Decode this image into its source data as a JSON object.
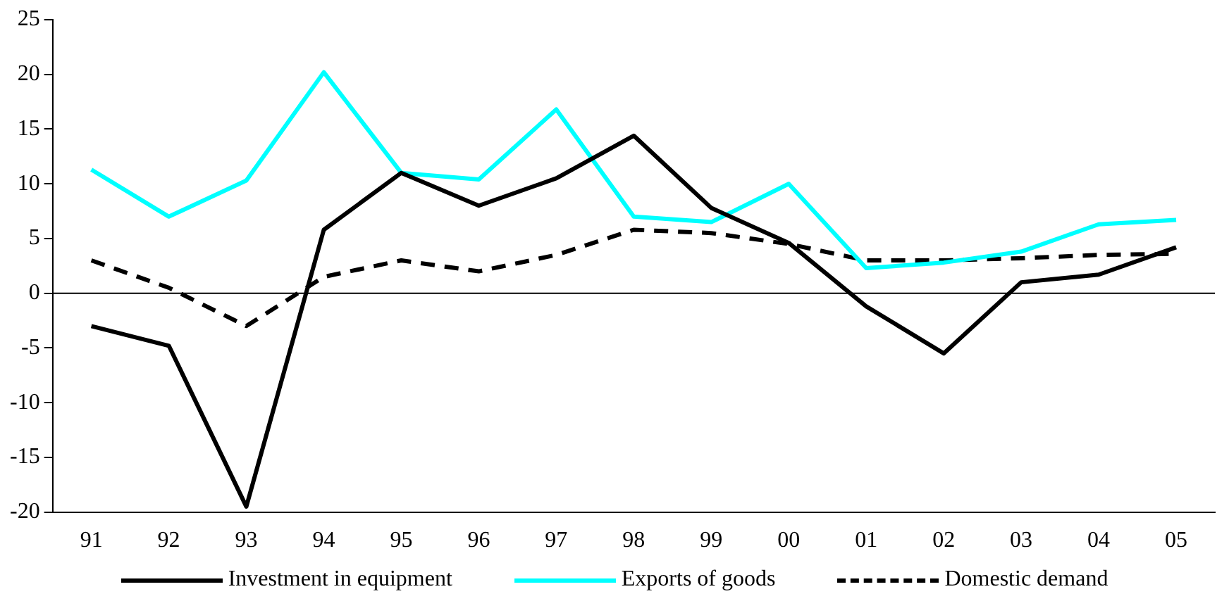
{
  "chart_data": {
    "type": "line",
    "categories": [
      "91",
      "92",
      "93",
      "94",
      "95",
      "96",
      "97",
      "98",
      "99",
      "00",
      "01",
      "02",
      "03",
      "04",
      "05"
    ],
    "series": [
      {
        "name": "Investment in equipment",
        "color": "#000000",
        "line_style": "solid",
        "values": [
          -3,
          -4.8,
          -19.5,
          5.8,
          11,
          8,
          10.5,
          14.4,
          7.8,
          4.6,
          -1.2,
          -5.5,
          1,
          1.7,
          4.2
        ]
      },
      {
        "name": "Exports of goods",
        "color": "#00ffff",
        "line_style": "solid",
        "values": [
          11.3,
          7,
          10.3,
          20.2,
          11,
          10.4,
          16.8,
          7,
          6.5,
          10,
          2.3,
          2.8,
          3.8,
          6.3,
          6.7
        ]
      },
      {
        "name": "Domestic demand",
        "color": "#000000",
        "line_style": "dashed",
        "values": [
          3,
          0.5,
          -3,
          1.5,
          3,
          2,
          3.5,
          5.8,
          5.5,
          4.5,
          3,
          3,
          3.2,
          3.5,
          3.6
        ]
      }
    ],
    "ylim": [
      -20,
      25
    ],
    "yticks": [
      -20,
      -15,
      -10,
      -5,
      0,
      5,
      10,
      15,
      20,
      25
    ],
    "grid": false,
    "legend": "bottom",
    "marker": "none",
    "ref_lines": [
      {
        "axis": "y",
        "value": 0,
        "color": "#000000"
      }
    ]
  }
}
